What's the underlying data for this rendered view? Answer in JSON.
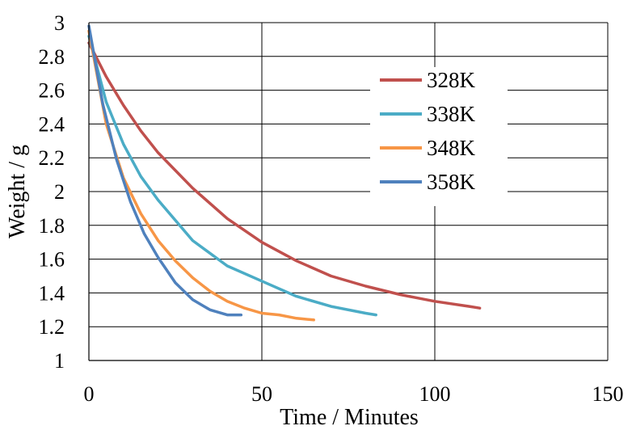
{
  "chart_data": {
    "type": "line",
    "title": "",
    "xlabel": "Time / Minutes",
    "ylabel": "Weight / g",
    "xlim": [
      0,
      150
    ],
    "ylim": [
      1,
      3
    ],
    "xticks": [
      0,
      50,
      100,
      150
    ],
    "xtick_labels": [
      "0",
      "50",
      "100",
      "150"
    ],
    "yticks": [
      1,
      1.2,
      1.4,
      1.6,
      1.8,
      2,
      2.2,
      2.4,
      2.6,
      2.8,
      3
    ],
    "ytick_labels": [
      "1",
      "1.2",
      "1.4",
      "1.6",
      "1.8",
      "2",
      "2.2",
      "2.4",
      "2.6",
      "2.8",
      "3"
    ],
    "grid": true,
    "legend_position": "top-right",
    "series": [
      {
        "name": "328K",
        "color": "#c0504d",
        "x": [
          0,
          5,
          10,
          15,
          20,
          30,
          40,
          50,
          60,
          70,
          80,
          90,
          100,
          110,
          113
        ],
        "y": [
          2.88,
          2.68,
          2.51,
          2.36,
          2.23,
          2.02,
          1.84,
          1.7,
          1.59,
          1.5,
          1.44,
          1.39,
          1.35,
          1.32,
          1.31
        ]
      },
      {
        "name": "338K",
        "color": "#4bacc6",
        "x": [
          0,
          5,
          10,
          15,
          20,
          30,
          40,
          50,
          60,
          70,
          80,
          83
        ],
        "y": [
          2.92,
          2.53,
          2.28,
          2.09,
          1.95,
          1.71,
          1.56,
          1.47,
          1.38,
          1.32,
          1.28,
          1.27
        ]
      },
      {
        "name": "348K",
        "color": "#f79646",
        "x": [
          0,
          5,
          10,
          15,
          20,
          25,
          30,
          35,
          40,
          45,
          50,
          55,
          60,
          65
        ],
        "y": [
          2.95,
          2.4,
          2.08,
          1.87,
          1.71,
          1.59,
          1.49,
          1.41,
          1.35,
          1.31,
          1.28,
          1.27,
          1.25,
          1.24
        ]
      },
      {
        "name": "358K",
        "color": "#4f81bd",
        "x": [
          0,
          4,
          8,
          12,
          16,
          20,
          25,
          30,
          35,
          40,
          44
        ],
        "y": [
          2.98,
          2.52,
          2.19,
          1.94,
          1.75,
          1.61,
          1.46,
          1.36,
          1.3,
          1.27,
          1.27
        ]
      }
    ]
  }
}
